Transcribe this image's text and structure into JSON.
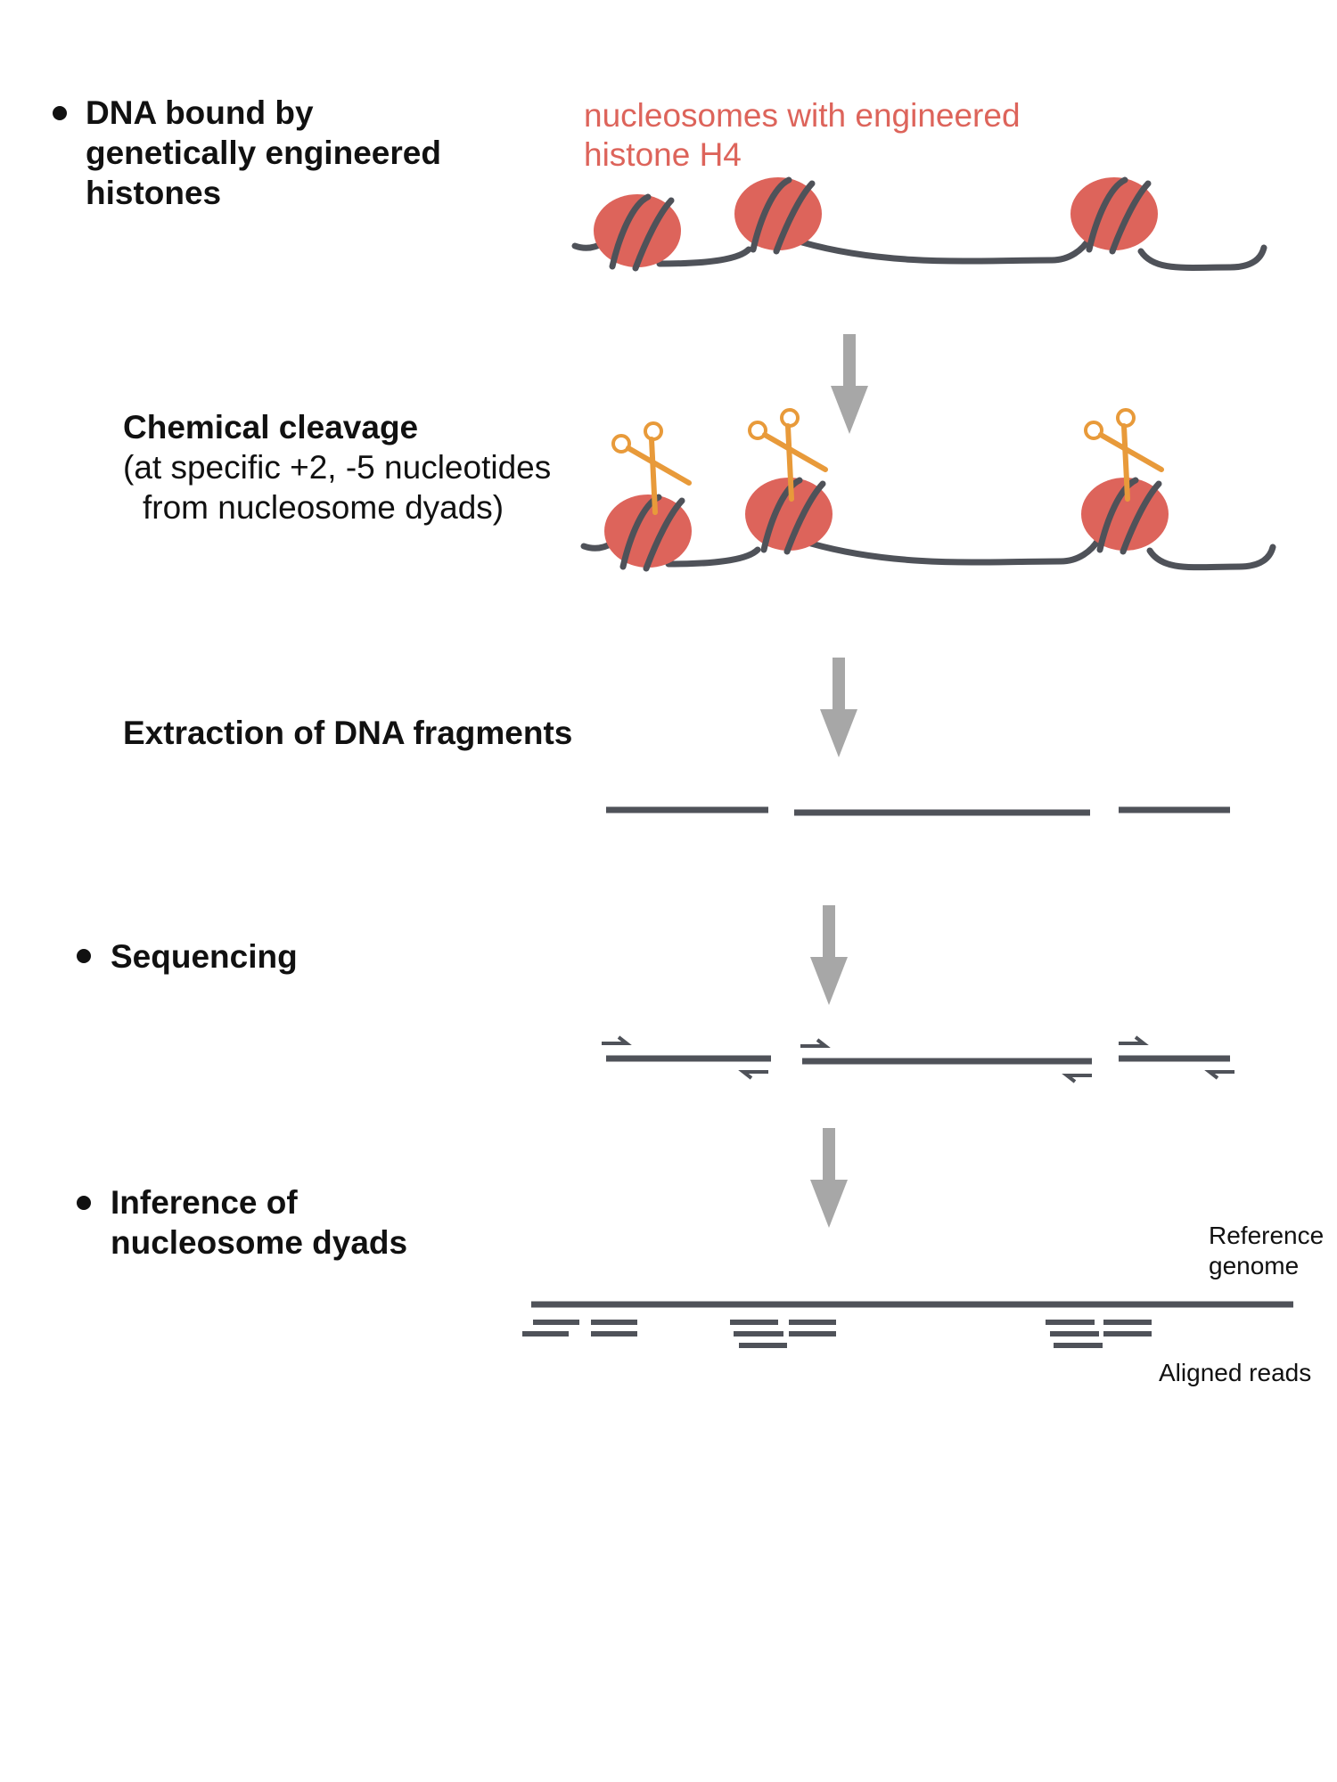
{
  "colors": {
    "dna": "#4f5259",
    "nucleosome": "#dd645b",
    "scissors": "#e89a3a",
    "arrow": "#a7a7a7",
    "label_red": "#dd645b",
    "text": "#111111"
  },
  "steps": {
    "s1": {
      "title_lines": [
        "DNA bound by",
        "genetically engineered",
        "histones"
      ]
    },
    "s2": {
      "title": "Chemical cleavage",
      "desc_lines": [
        "(at specific +2, -5 nucleotides",
        "from nucleosome dyads)"
      ]
    },
    "s3": {
      "title": "Extraction of DNA fragments"
    },
    "s4": {
      "title": "Sequencing"
    },
    "s5": {
      "title_lines": [
        "Inference of",
        "nucleosome dyads"
      ]
    }
  },
  "labels": {
    "nucleosome_lines": [
      "nucleosomes with engineered",
      "histone H4"
    ],
    "reference_lines": [
      "Reference",
      "genome"
    ],
    "aligned_reads": "Aligned reads"
  },
  "icons": [
    "bullet-icon",
    "scissors-icon",
    "arrow-down-icon",
    "primer-arrow-icon"
  ]
}
